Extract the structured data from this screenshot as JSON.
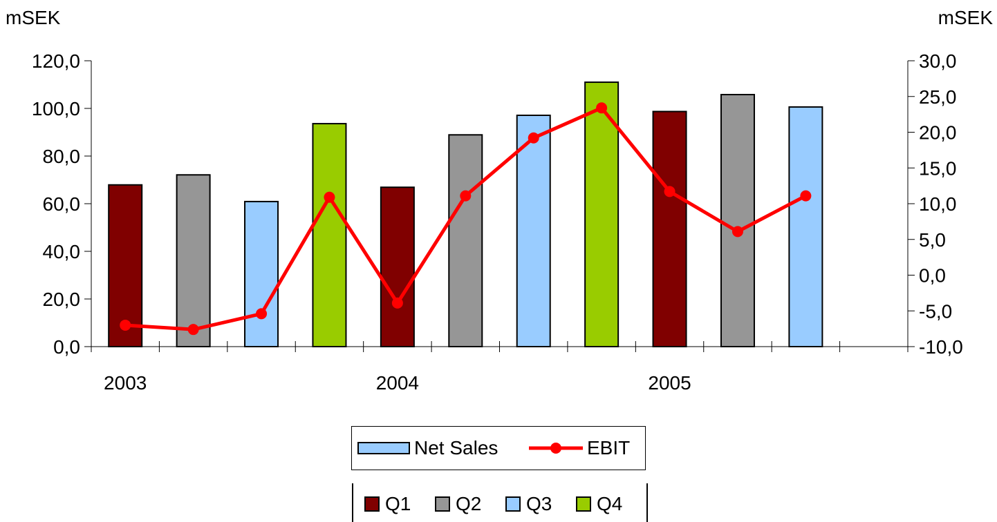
{
  "chart_data": {
    "type": "bar",
    "left_axis_unit": "mSEK",
    "right_axis_unit": "mSEK",
    "year_labels": [
      "2003",
      "2004",
      "2005"
    ],
    "left_ticks": [
      "0,0",
      "20,0",
      "40,0",
      "60,0",
      "80,0",
      "100,0",
      "120,0"
    ],
    "right_ticks": [
      "-10,0",
      "-5,0",
      "0,0",
      "5,0",
      "10,0",
      "15,0",
      "20,0",
      "25,0",
      "30,0"
    ],
    "ylim": [
      0,
      120
    ],
    "y2lim": [
      -10,
      30
    ],
    "x": [
      "Q1 2003",
      "Q2 2003",
      "Q3 2003",
      "Q4 2003",
      "Q1 2004",
      "Q2 2004",
      "Q3 2004",
      "Q4 2004",
      "Q1 2005",
      "Q2 2005",
      "Q3 2005"
    ],
    "quarters": [
      "Q1",
      "Q2",
      "Q3",
      "Q4",
      "Q1",
      "Q2",
      "Q3",
      "Q4",
      "Q1",
      "Q2",
      "Q3"
    ],
    "series": [
      {
        "name": "Net Sales",
        "type": "bar",
        "axis": "left",
        "values": [
          67.9,
          72.1,
          60.9,
          93.6,
          66.9,
          88.9,
          97.1,
          111.0,
          98.7,
          105.8,
          100.6
        ]
      },
      {
        "name": "EBIT",
        "type": "line",
        "axis": "right",
        "color": "#ff0000",
        "values": [
          -7.0,
          -7.6,
          -5.4,
          10.9,
          -3.9,
          11.1,
          19.2,
          23.4,
          11.7,
          6.1,
          11.1
        ]
      }
    ],
    "quarter_colors": {
      "Q1": "#800000",
      "Q2": "#969696",
      "Q3": "#99ccff",
      "Q4": "#99cc00"
    },
    "legend": {
      "series": [
        "Net Sales",
        "EBIT"
      ],
      "quarters": [
        "Q1",
        "Q2",
        "Q3",
        "Q4"
      ]
    }
  }
}
